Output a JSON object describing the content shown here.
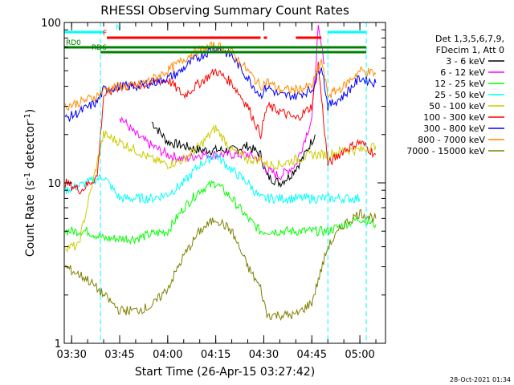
{
  "chart_data": {
    "type": "line",
    "title": "RHESSI Observing Summary Count Rates",
    "xlabel": "Start Time (26-Apr-15 03:27:42)",
    "ylabel": "Count Rate (s",
    "ylabel_sup": "-1",
    "ylabel_tail": " detector",
    "ylabel_end": ")",
    "yscale": "log",
    "ylim": [
      1,
      100
    ],
    "xlim": [
      "03:27:42",
      "05:08:00"
    ],
    "xticks": [
      "03:30",
      "03:45",
      "04:00",
      "04:15",
      "04:30",
      "04:45",
      "05:00"
    ],
    "yticks": [
      {
        "v": 1,
        "label": "1"
      },
      {
        "v": 10,
        "label": "10"
      },
      {
        "v": 100,
        "label": "100"
      }
    ],
    "timestamp": "28-Oct-2021 01:34",
    "legend": {
      "header": [
        "Det 1,3,5,6,7,9,",
        "FDecim 1, Att 0"
      ],
      "entries": [
        {
          "label": "3 - 6 keV",
          "color": "#000000"
        },
        {
          "label": "6 - 12 keV",
          "color": "#ff00ff"
        },
        {
          "label": "12 - 25 keV",
          "color": "#00ff00"
        },
        {
          "label": "25 - 50 keV",
          "color": "#00ffff"
        },
        {
          "label": "50 - 100 keV",
          "color": "#cccc00"
        },
        {
          "label": "100 - 300 keV",
          "color": "#ff0000"
        },
        {
          "label": "300 - 800 keV",
          "color": "#0000ff"
        },
        {
          "label": "800 - 7000 keV",
          "color": "#ff8c00"
        },
        {
          "label": "7000 - 15000 keV",
          "color": "#808000"
        }
      ]
    },
    "flags": [
      {
        "label": "N",
        "color": "#00ffff",
        "segments": [
          [
            "03:27:42",
            "03:40"
          ],
          [
            "04:50",
            "05:02"
          ]
        ]
      },
      {
        "label": "F",
        "color": "#ff0000",
        "segments": [
          [
            "03:41",
            "04:29"
          ],
          [
            "04:30",
            "04:31"
          ],
          [
            "04:40",
            "04:48"
          ]
        ]
      },
      {
        "label": "RD0",
        "color": "#008000",
        "segments": [
          [
            "03:27:42",
            "05:02"
          ]
        ]
      },
      {
        "label": "RD6",
        "color": "#008000",
        "segments": [
          [
            "03:39",
            "05:02"
          ]
        ]
      }
    ],
    "vlines": [
      "03:39",
      "04:50",
      "05:02"
    ],
    "series": [
      {
        "name": "3 - 6 keV",
        "color": "#000000",
        "t": [
          "03:55",
          "04:00",
          "04:05",
          "04:10",
          "04:15",
          "04:20",
          "04:25",
          "04:29",
          "04:31",
          "04:35",
          "04:38",
          "04:42",
          "04:46"
        ],
        "v": [
          24,
          18,
          17,
          16,
          16,
          16,
          17,
          15,
          11,
          10,
          11,
          14,
          20
        ]
      },
      {
        "name": "6 - 12 keV",
        "color": "#ff00ff",
        "t": [
          "03:45",
          "03:50",
          "03:55",
          "04:00",
          "04:05",
          "04:10",
          "04:15",
          "04:20",
          "04:25",
          "04:29",
          "04:31",
          "04:35",
          "04:40",
          "04:45",
          "04:47",
          "04:49"
        ],
        "v": [
          26,
          20,
          17,
          15,
          14,
          15,
          15,
          15,
          15,
          14,
          12,
          11,
          13,
          25,
          90,
          55
        ]
      },
      {
        "name": "12 - 25 keV",
        "color": "#00ff00",
        "t": [
          "03:28",
          "03:35",
          "03:40",
          "03:45",
          "03:50",
          "03:55",
          "04:00",
          "04:05",
          "04:10",
          "04:15",
          "04:20",
          "04:25",
          "04:29",
          "04:31",
          "04:35",
          "04:40",
          "04:45",
          "04:50",
          "04:55",
          "05:00",
          "05:05"
        ],
        "v": [
          5,
          5,
          4.5,
          4.5,
          4.5,
          4.8,
          5,
          7,
          9,
          10,
          8,
          6,
          5,
          5,
          5,
          5,
          5,
          5,
          5.5,
          6,
          5.5
        ]
      },
      {
        "name": "25 - 50 keV",
        "color": "#00ffff",
        "t": [
          "03:28",
          "03:35",
          "03:40",
          "03:45",
          "03:50",
          "03:55",
          "04:00",
          "04:05",
          "04:10",
          "04:15",
          "04:20",
          "04:25",
          "04:29",
          "04:31",
          "04:35",
          "04:40",
          "04:45",
          "04:50",
          "04:55",
          "05:00"
        ],
        "v": [
          9,
          10,
          11,
          8,
          8,
          8,
          8.5,
          10,
          13,
          15,
          12,
          10,
          8,
          8,
          8,
          8,
          8,
          8,
          8,
          8
        ]
      },
      {
        "name": "50 - 100 keV",
        "color": "#cccc00",
        "t": [
          "03:28",
          "03:32",
          "03:40",
          "03:45",
          "03:50",
          "03:55",
          "04:00",
          "04:05",
          "04:10",
          "04:15",
          "04:20",
          "04:25",
          "04:29",
          "04:31",
          "04:35",
          "04:40",
          "04:45",
          "04:50",
          "04:55",
          "05:00",
          "05:05"
        ],
        "v": [
          4,
          4,
          20,
          18,
          16,
          14,
          13,
          14,
          17,
          22,
          16,
          14,
          14,
          13,
          13,
          14,
          15,
          15,
          16,
          16,
          17
        ]
      },
      {
        "name": "100 - 300 keV",
        "color": "#ff0000",
        "t": [
          "03:28",
          "03:33",
          "03:38",
          "03:40",
          "03:45",
          "03:50",
          "03:55",
          "04:00",
          "04:05",
          "04:10",
          "04:15",
          "04:20",
          "04:25",
          "04:29",
          "04:31",
          "04:35",
          "04:40",
          "04:45",
          "04:47",
          "04:50",
          "04:55",
          "05:00",
          "05:05"
        ],
        "v": [
          10,
          9,
          11,
          35,
          40,
          40,
          42,
          44,
          35,
          42,
          50,
          42,
          30,
          20,
          30,
          28,
          25,
          30,
          55,
          13,
          16,
          18,
          15
        ]
      },
      {
        "name": "300 - 800 keV",
        "color": "#0000ff",
        "t": [
          "03:28",
          "03:33",
          "03:38",
          "03:40",
          "03:45",
          "03:50",
          "03:55",
          "04:00",
          "04:03",
          "04:08",
          "04:15",
          "04:20",
          "04:25",
          "04:29",
          "04:31",
          "04:35",
          "04:40",
          "04:45",
          "04:48",
          "04:50",
          "04:55",
          "05:00",
          "05:05"
        ],
        "v": [
          25,
          28,
          32,
          38,
          40,
          40,
          42,
          45,
          48,
          58,
          70,
          62,
          45,
          35,
          40,
          35,
          35,
          38,
          55,
          30,
          35,
          45,
          42
        ]
      },
      {
        "name": "800 - 7000 keV",
        "color": "#ff8c00",
        "t": [
          "03:28",
          "03:33",
          "03:38",
          "03:40",
          "03:45",
          "03:50",
          "03:55",
          "04:00",
          "04:03",
          "04:08",
          "04:15",
          "04:20",
          "04:25",
          "04:29",
          "04:31",
          "04:35",
          "04:40",
          "04:45",
          "04:48",
          "04:50",
          "04:55",
          "05:00",
          "05:05"
        ],
        "v": [
          30,
          32,
          35,
          38,
          40,
          40,
          44,
          50,
          55,
          65,
          72,
          65,
          50,
          40,
          43,
          38,
          38,
          40,
          58,
          35,
          40,
          50,
          48
        ]
      },
      {
        "name": "7000 - 15000 keV",
        "color": "#808000",
        "t": [
          "03:28",
          "03:35",
          "03:40",
          "03:45",
          "03:50",
          "03:55",
          "04:00",
          "04:05",
          "04:10",
          "04:15",
          "04:20",
          "04:25",
          "04:29",
          "04:31",
          "04:35",
          "04:40",
          "04:45",
          "04:50",
          "04:55",
          "05:00",
          "05:05"
        ],
        "v": [
          3,
          2.5,
          2,
          1.6,
          1.6,
          1.7,
          2.2,
          3.5,
          5,
          6,
          5,
          3,
          2.2,
          1.5,
          1.5,
          1.5,
          1.8,
          4,
          5.5,
          6.5,
          6
        ]
      }
    ]
  }
}
